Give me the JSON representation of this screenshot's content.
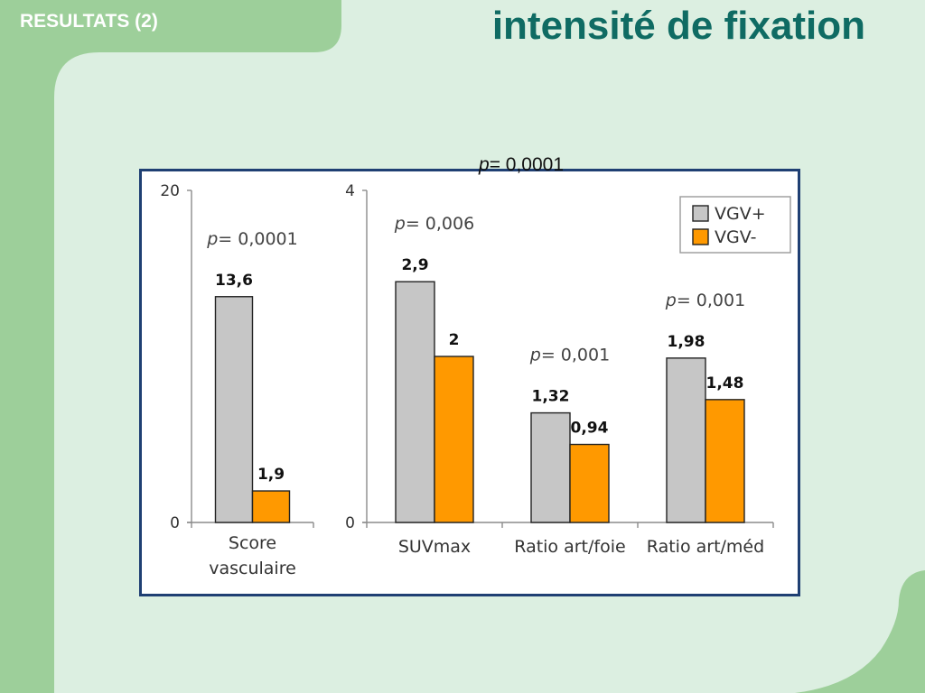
{
  "slide": {
    "header_badge": "RESULTATS (2)",
    "title": "intensité de fixation",
    "floating_p_label": "p",
    "floating_p_value": "= 0,0001"
  },
  "colors": {
    "vgv_plus": "#c6c6c6",
    "vgv_minus": "#ff9900",
    "title": "#0f6b63",
    "panel_border": "#1f3f73",
    "bg_green_dark": "#9dcf9a",
    "bg_green_light": "#dcefe1"
  },
  "chart_data": [
    {
      "type": "bar",
      "categories": [
        "Score vasculaire"
      ],
      "category_lines": [
        [
          "Score",
          "vasculaire"
        ]
      ],
      "ylim": [
        0,
        20
      ],
      "yticks": [
        "0",
        "20"
      ],
      "series": [
        {
          "name": "VGV+",
          "values": [
            13.6
          ],
          "labels": [
            "13,6"
          ]
        },
        {
          "name": "VGV-",
          "values": [
            1.9
          ],
          "labels": [
            "1,9"
          ]
        }
      ],
      "annotations": [
        {
          "category": 0,
          "label": "p",
          "text": "= 0,0001"
        }
      ]
    },
    {
      "type": "bar",
      "categories": [
        "SUVmax",
        "Ratio art/foie",
        "Ratio art/méd"
      ],
      "category_lines": [
        [
          "SUVmax"
        ],
        [
          "Ratio art/foie"
        ],
        [
          "Ratio art/méd"
        ]
      ],
      "ylim": [
        0,
        4
      ],
      "yticks": [
        "0",
        "4"
      ],
      "series": [
        {
          "name": "VGV+",
          "values": [
            2.9,
            1.32,
            1.98
          ],
          "labels": [
            "2,9",
            "1,32",
            "1,98"
          ]
        },
        {
          "name": "VGV-",
          "values": [
            2,
            0.94,
            1.48
          ],
          "labels": [
            "2",
            "0,94",
            "1,48"
          ]
        }
      ],
      "annotations": [
        {
          "category": 0,
          "label": "p",
          "text": "= 0,006"
        },
        {
          "category": 1,
          "label": "p",
          "text": "= 0,001"
        },
        {
          "category": 2,
          "label": "p",
          "text": "= 0,001"
        }
      ],
      "legend": {
        "position": "top-right",
        "entries": [
          "VGV+",
          "VGV-"
        ]
      }
    }
  ]
}
